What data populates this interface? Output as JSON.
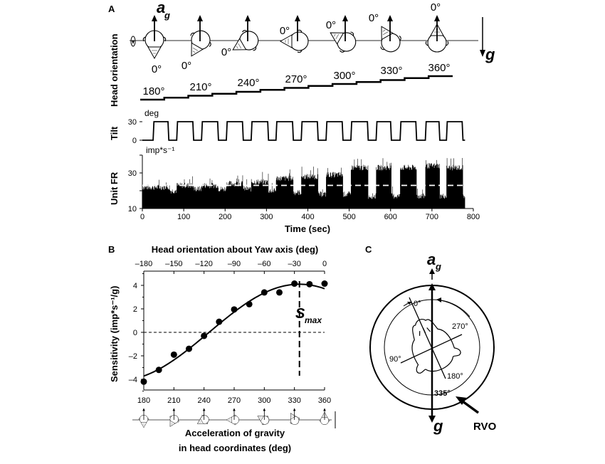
{
  "panel_labels": {
    "a": "A",
    "b": "B",
    "c": "C"
  },
  "panel_a": {
    "ylabel_head": "Head orientation",
    "ag_label": "a",
    "ag_sub": "g",
    "g_label": "g",
    "zero_label": "0°",
    "head_orientations": [
      180,
      210,
      240,
      270,
      300,
      330,
      360
    ],
    "stair_labels": [
      "180°",
      "210°",
      "240°",
      "270°",
      "300°",
      "330°",
      "360°"
    ]
  },
  "chart_data": [
    {
      "type": "line",
      "name_key": "tilt",
      "ylabel": "Tilt",
      "unit": "deg",
      "ylim": [
        0,
        30
      ],
      "yticks": [
        "30",
        "0"
      ],
      "xlim": [
        0,
        800
      ],
      "tilt_on_intervals": [
        [
          26,
          64
        ],
        [
          83,
          124
        ],
        [
          143,
          184
        ],
        [
          203,
          244
        ],
        [
          263,
          305
        ],
        [
          323,
          365
        ],
        [
          384,
          425
        ],
        [
          444,
          485
        ],
        [
          504,
          546
        ],
        [
          565,
          602
        ],
        [
          623,
          663
        ],
        [
          684,
          719
        ],
        [
          735,
          775
        ]
      ],
      "levels": [
        0,
        30
      ],
      "end": 780
    },
    {
      "type": "bar",
      "ylabel": "Unit FR",
      "unit": "imp*s⁻¹",
      "ylim": [
        10,
        40
      ],
      "yticks": [
        "30",
        "10"
      ],
      "xlim": [
        0,
        800
      ],
      "xticks": [
        "0",
        "100",
        "200",
        "300",
        "400",
        "500",
        "600",
        "700",
        "800"
      ],
      "xlabel": "Time (sec)",
      "tilt_on_rates": [
        22,
        23,
        23,
        24,
        25,
        27,
        28,
        29,
        33,
        33,
        33,
        34,
        33
      ],
      "tilt_off_rates": [
        22,
        20,
        21,
        21,
        21,
        20,
        19,
        18,
        18,
        17,
        17,
        17,
        17,
        17
      ],
      "mean_rate_dashed": 23,
      "end": 780
    },
    {
      "type": "scatter",
      "title": "Head orientation about Yaw axis (deg)",
      "xlabel": "Acceleration of gravity",
      "xlabel2": "in head coordinates (deg)",
      "ylabel": "Sensitivity (imp*s⁻¹/g)",
      "xlim": [
        180,
        360
      ],
      "ylim": [
        -5,
        5
      ],
      "xticks_bottom": [
        "180",
        "210",
        "240",
        "270",
        "300",
        "330",
        "360"
      ],
      "xticks_top": [
        "–180",
        "–150",
        "–120",
        "–90",
        "–60",
        "–30",
        "0"
      ],
      "yticks": [
        "4",
        "2",
        "0",
        "–2",
        "–4"
      ],
      "x": [
        180,
        195,
        210,
        225,
        240,
        255,
        270,
        285,
        300,
        315,
        330,
        345,
        360
      ],
      "y": [
        -4.2,
        -3.2,
        -1.9,
        -1.4,
        -0.3,
        0.9,
        1.95,
        2.4,
        3.4,
        3.4,
        4.15,
        4.1,
        4.15
      ],
      "fit": {
        "type": "sine",
        "amplitude": 4.1,
        "peak_deg": 335
      },
      "smax_label": "S",
      "smax_sub": "max",
      "smax_x": 335,
      "zero_line": true
    }
  ],
  "panel_c": {
    "ag_label": "a",
    "ag_sub": "g",
    "g_label": "g",
    "deg_0": "0°",
    "deg_90": "90°",
    "deg_180": "180°",
    "deg_270": "270°",
    "deg_335": "335°",
    "rvo_label": "RVO"
  }
}
